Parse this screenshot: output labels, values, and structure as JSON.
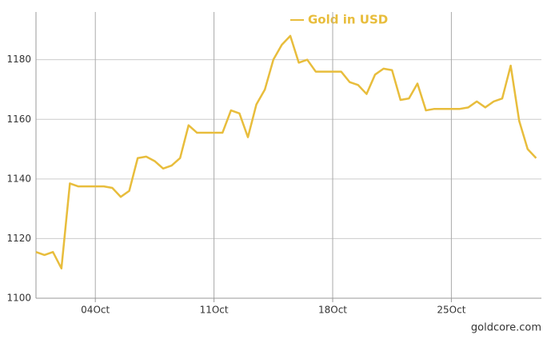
{
  "chart_data": {
    "type": "line",
    "legend_label": "Gold in USD",
    "source": "goldcore.com",
    "categories": [
      null,
      null,
      null,
      null,
      null,
      null,
      null,
      "04Oct",
      null,
      null,
      null,
      null,
      null,
      null,
      null,
      null,
      null,
      null,
      null,
      null,
      null,
      "11Oct",
      null,
      null,
      null,
      null,
      null,
      null,
      null,
      null,
      null,
      null,
      null,
      null,
      null,
      "18Oct",
      null,
      null,
      null,
      null,
      null,
      null,
      null,
      null,
      null,
      null,
      null,
      null,
      null,
      "25Oct",
      null,
      null,
      null,
      null,
      null,
      null,
      null,
      null,
      null,
      null
    ],
    "series": [
      {
        "name": "Gold in USD",
        "color": "#e8bd3c",
        "values": [
          1115.5,
          1114.5,
          1115.5,
          1110,
          1138.5,
          1137.5,
          1137.5,
          1137.5,
          1137.5,
          1137,
          1134,
          1136,
          1147,
          1147.5,
          1146,
          1143.5,
          1144.5,
          1147,
          1158,
          1155.5,
          1155.5,
          1155.5,
          1155.5,
          1163,
          1162,
          1154,
          1165,
          1170,
          1180,
          1185,
          1188,
          1179,
          1180,
          1176,
          1176,
          1176,
          1176,
          1172.5,
          1171.5,
          1168.5,
          1175,
          1177,
          1176.5,
          1166.5,
          1167,
          1172,
          1163,
          1163.5,
          1163.5,
          1163.5,
          1163.5,
          1164,
          1166,
          1164,
          1166,
          1167,
          1178,
          1159.5,
          1150,
          1147
        ]
      }
    ],
    "ylim": [
      1100,
      1196
    ],
    "yticks": [
      1100,
      1120,
      1140,
      1160,
      1180
    ],
    "grid": true
  }
}
